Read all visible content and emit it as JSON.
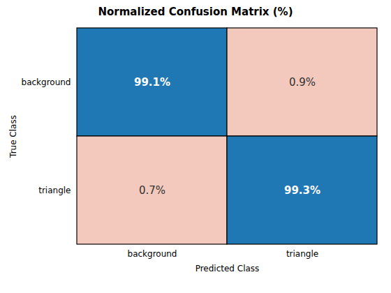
{
  "chart_data": {
    "type": "heatmap",
    "title": "Normalized Confusion Matrix (%)",
    "xlabel": "Predicted Class",
    "ylabel": "True Class",
    "categories": [
      "background",
      "triangle"
    ],
    "y_categories": [
      "background",
      "triangle"
    ],
    "values": [
      [
        99.1,
        0.9
      ],
      [
        0.7,
        99.3
      ]
    ],
    "value_labels": [
      [
        "99.1%",
        "0.9%"
      ],
      [
        "0.7%",
        "99.3%"
      ]
    ],
    "colors": [
      [
        "#1F77B4",
        "#F2C9BC"
      ],
      [
        "#F2C9BC",
        "#1F77B4"
      ]
    ],
    "data_labels": true,
    "grid": false
  }
}
